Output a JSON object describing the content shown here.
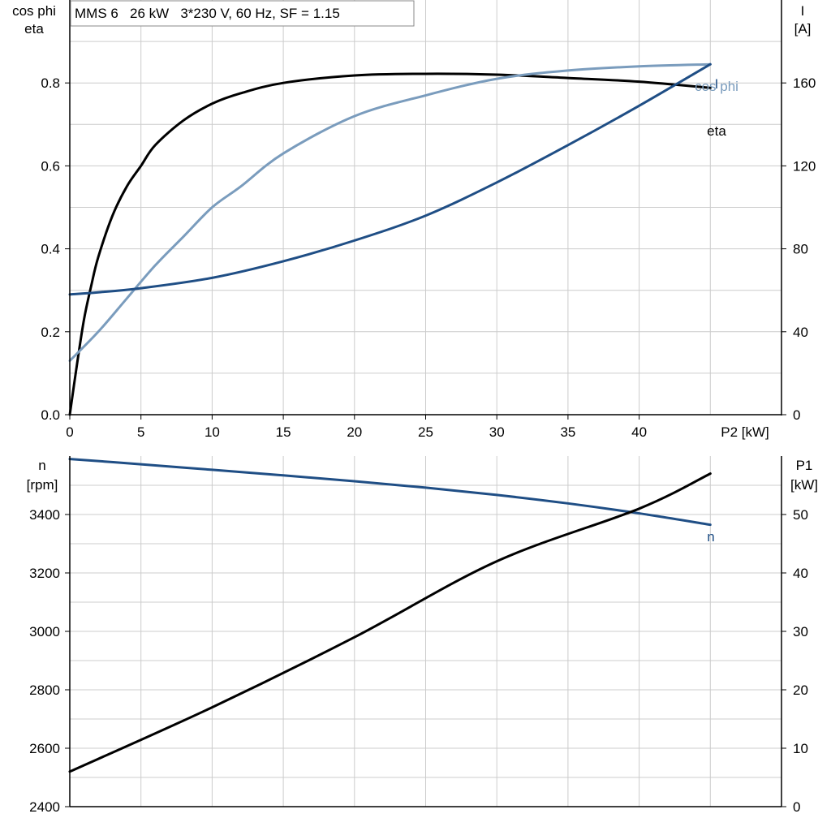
{
  "chart_data": [
    {
      "type": "line",
      "title": "MMS 6   26 kW   3*230 V, 60 Hz, SF = 1.15",
      "xlabel": "P2 [kW]",
      "ylabel_left": [
        "cos phi",
        "eta"
      ],
      "ylabel_right": [
        "I",
        "[A]"
      ],
      "xlim": [
        0,
        50
      ],
      "ylim_left": [
        0,
        1.0
      ],
      "ylim_right": [
        0,
        200
      ],
      "x_ticks": [
        0,
        5,
        10,
        15,
        20,
        25,
        30,
        35,
        40
      ],
      "y_ticks_left": [
        0.0,
        0.2,
        0.4,
        0.6,
        0.8
      ],
      "y_ticks_left_labels": [
        "0.0",
        "0.2",
        "0.4",
        "0.6",
        "0.8"
      ],
      "y_ticks_right": [
        0,
        40,
        80,
        120,
        160
      ],
      "grid": true,
      "series": [
        {
          "name": "eta",
          "axis": "left",
          "color": "#000000",
          "x": [
            0,
            0.5,
            1,
            1.5,
            2,
            3,
            4,
            5,
            6,
            8,
            10,
            12,
            15,
            20,
            25,
            30,
            35,
            40,
            45
          ],
          "y": [
            0.0,
            0.12,
            0.23,
            0.31,
            0.38,
            0.48,
            0.55,
            0.6,
            0.65,
            0.71,
            0.75,
            0.775,
            0.8,
            0.818,
            0.822,
            0.82,
            0.812,
            0.803,
            0.788
          ]
        },
        {
          "name": "cos phi",
          "axis": "left",
          "color": "#7a9cbd",
          "x": [
            0,
            2,
            4,
            6,
            8,
            10,
            12,
            15,
            20,
            25,
            30,
            35,
            40,
            45
          ],
          "y": [
            0.13,
            0.2,
            0.28,
            0.36,
            0.43,
            0.5,
            0.55,
            0.63,
            0.72,
            0.77,
            0.81,
            0.83,
            0.84,
            0.845
          ]
        },
        {
          "name": "I",
          "axis": "right",
          "color": "#1f4e85",
          "x": [
            0,
            2,
            5,
            10,
            15,
            20,
            25,
            30,
            35,
            40,
            45
          ],
          "y": [
            58,
            59,
            61,
            66,
            74,
            84,
            96,
            112,
            130,
            149,
            169
          ]
        }
      ]
    },
    {
      "type": "line",
      "xlim": [
        0,
        50
      ],
      "ylabel_left": [
        "n",
        "[rpm]"
      ],
      "ylabel_right": [
        "P1",
        "[kW]"
      ],
      "ylim_left": [
        2400,
        3600
      ],
      "ylim_right": [
        0,
        60
      ],
      "y_ticks_left": [
        2400,
        2600,
        2800,
        3000,
        3200,
        3400
      ],
      "y_ticks_right": [
        0,
        10,
        20,
        30,
        40,
        50
      ],
      "grid": true,
      "series": [
        {
          "name": "n",
          "axis": "left",
          "color": "#1f4e85",
          "x": [
            0,
            5,
            10,
            15,
            20,
            25,
            30,
            35,
            40,
            45
          ],
          "y": [
            3590,
            3572,
            3553,
            3534,
            3514,
            3492,
            3467,
            3438,
            3404,
            3365
          ]
        },
        {
          "name": "P1",
          "axis": "right",
          "color": "#000000",
          "x": [
            0,
            10,
            20,
            30,
            40,
            45
          ],
          "y": [
            6,
            17,
            29,
            42,
            51,
            57
          ]
        }
      ]
    }
  ]
}
